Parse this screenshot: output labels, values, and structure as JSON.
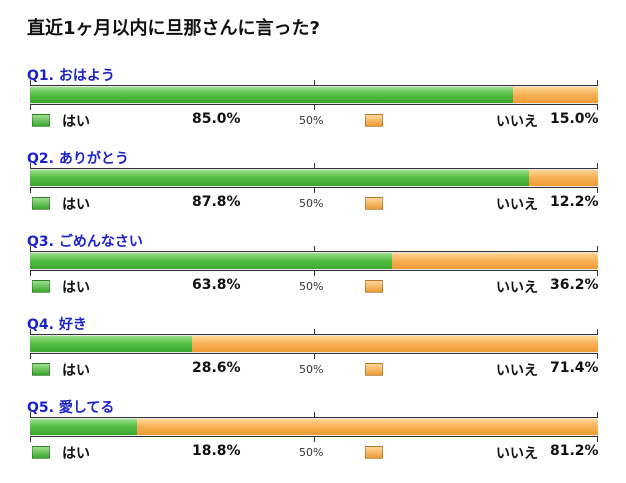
{
  "title": "直近1ヶ月以内に旦那さんに言った?",
  "legend": {
    "yes_label": "はい",
    "no_label": "いいえ",
    "mid_label": "50%"
  },
  "colors": {
    "yes": "#4fb840",
    "no": "#f4a84a",
    "question_text": "#1a22c8"
  },
  "chart_data": {
    "type": "bar",
    "orientation": "horizontal",
    "stacked": true,
    "title": "直近1ヶ月以内に旦那さんに言った?",
    "categories": [
      "Q1. おはよう",
      "Q2. ありがとう",
      "Q3. ごめんなさい",
      "Q4. 好き",
      "Q5. 愛してる"
    ],
    "series": [
      {
        "name": "はい",
        "values": [
          85.0,
          87.8,
          63.8,
          28.6,
          18.8
        ]
      },
      {
        "name": "いいえ",
        "values": [
          15.0,
          12.2,
          36.2,
          71.4,
          81.2
        ]
      }
    ],
    "xlim": [
      0,
      100
    ],
    "tick_labels": [
      "50%"
    ]
  },
  "questions": [
    {
      "label": "Q1. おはよう",
      "yes_text": "85.0%",
      "no_text": "15.0%"
    },
    {
      "label": "Q2. ありがとう",
      "yes_text": "87.8%",
      "no_text": "12.2%"
    },
    {
      "label": "Q3. ごめんなさい",
      "yes_text": "63.8%",
      "no_text": "36.2%"
    },
    {
      "label": "Q4. 好き",
      "yes_text": "28.6%",
      "no_text": "71.4%"
    },
    {
      "label": "Q5. 愛してる",
      "yes_text": "18.8%",
      "no_text": "81.2%"
    }
  ]
}
